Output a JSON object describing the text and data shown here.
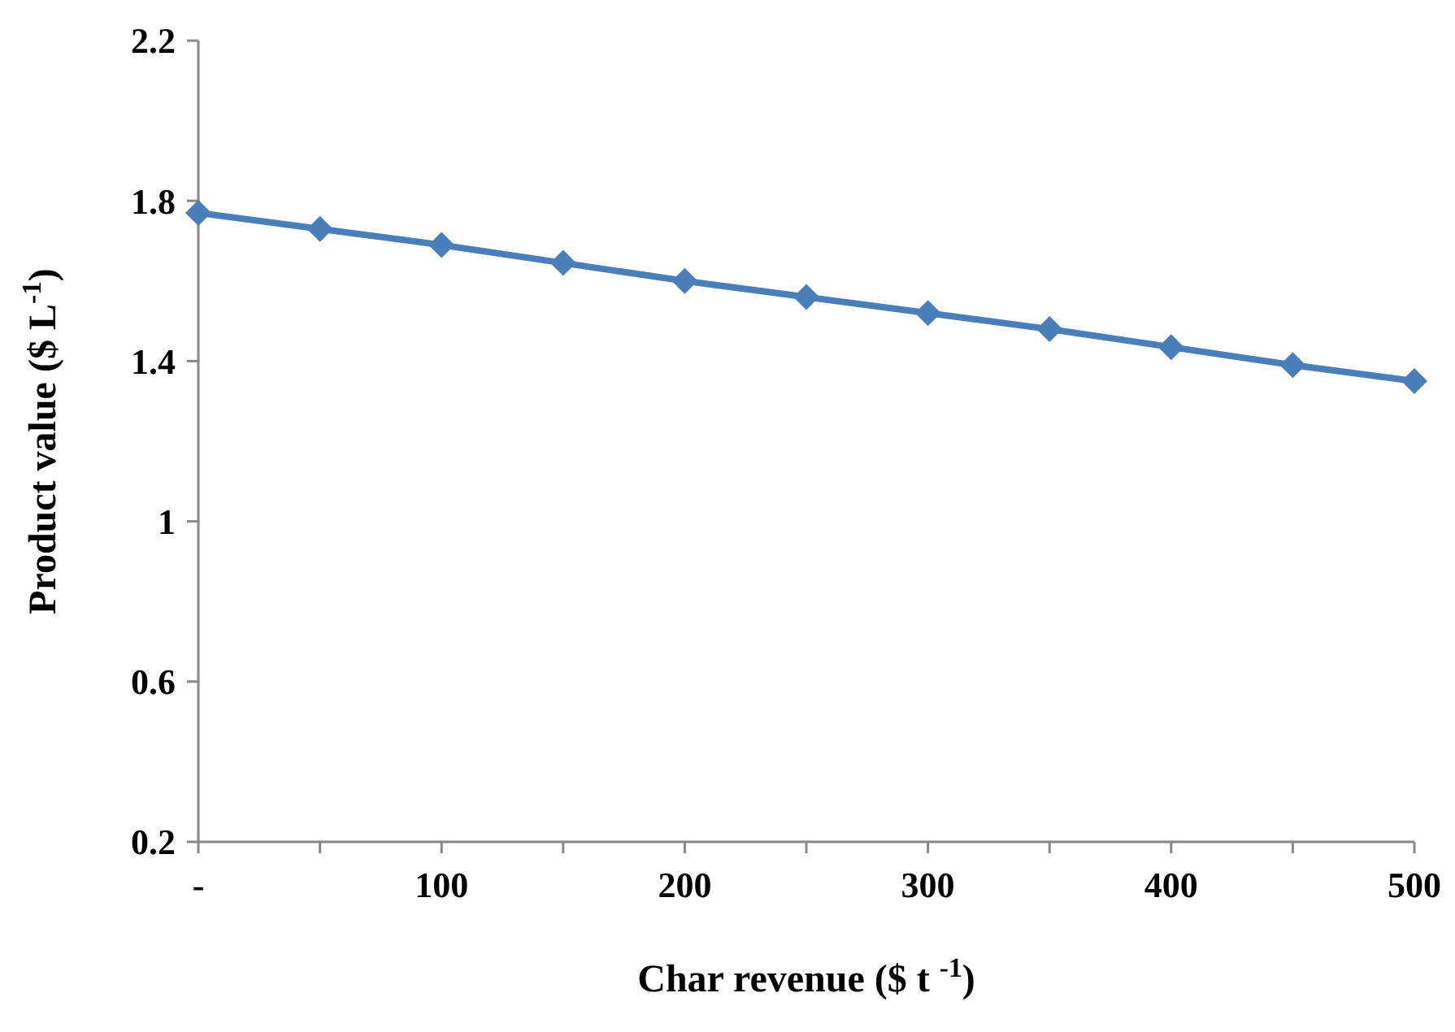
{
  "chart_data": {
    "type": "line",
    "xlabel": "Char revenue ($ t $^{-1}$)",
    "ylabel": "Product value ($ L$^{-1}$)",
    "x": [
      0,
      50,
      100,
      150,
      200,
      250,
      300,
      350,
      400,
      450,
      500
    ],
    "series": [
      {
        "color": "#4a7ebb",
        "values": [
          1.77,
          1.73,
          1.69,
          1.645,
          1.6,
          1.56,
          1.52,
          1.48,
          1.435,
          1.39,
          1.35
        ]
      }
    ],
    "xlim": [
      0,
      500
    ],
    "xticks": [
      {
        "value": 0,
        "label": "-"
      },
      {
        "value": 50,
        "label": null
      },
      100,
      {
        "value": 150,
        "label": null
      },
      200,
      {
        "value": 250,
        "label": null
      },
      300,
      {
        "value": 350,
        "label": null
      },
      400,
      {
        "value": 450,
        "label": null
      },
      500
    ],
    "ylim": [
      0.2,
      2.2
    ],
    "yticks": [
      0.2,
      0.6,
      1,
      1.4,
      1.8,
      2.2
    ],
    "grid": false,
    "marker": "diamond",
    "line_style": "solid"
  }
}
